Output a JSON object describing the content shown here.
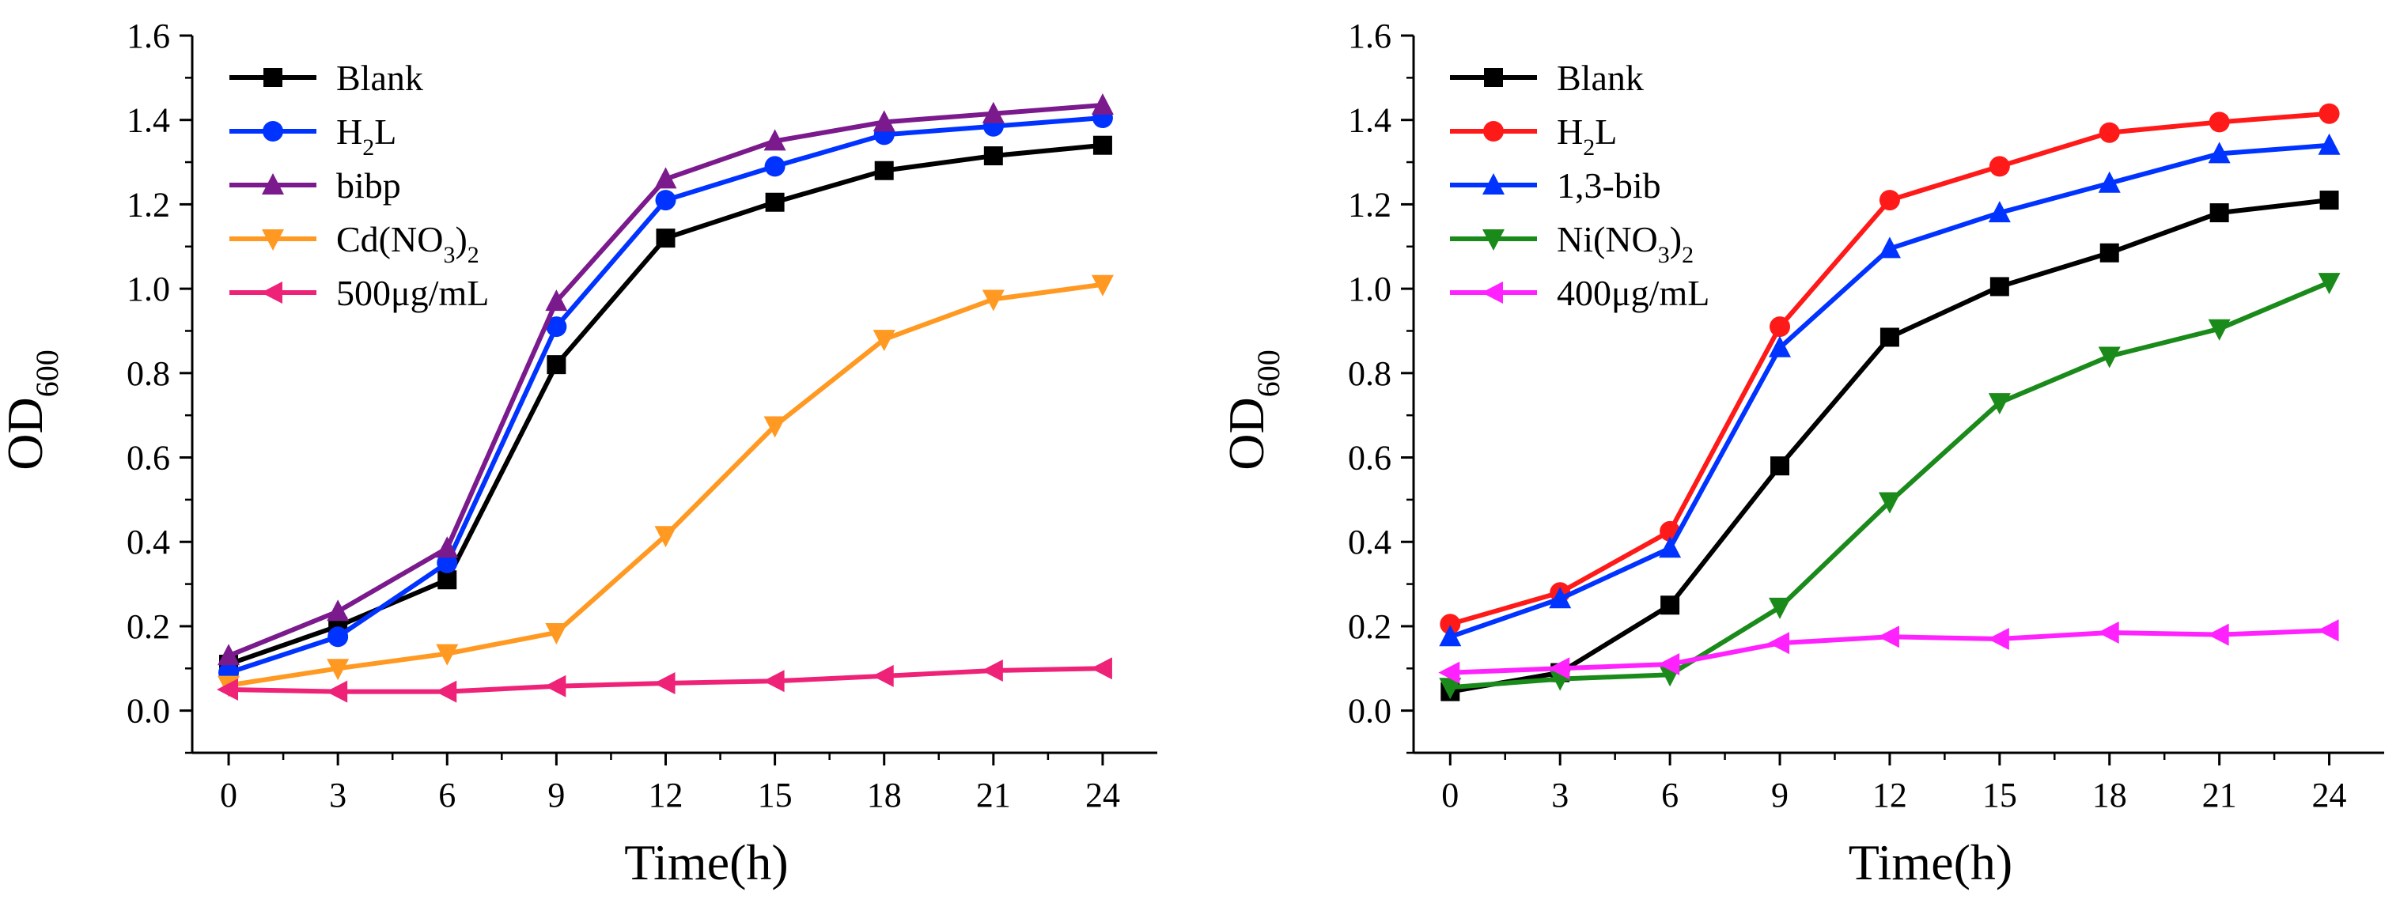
{
  "chart_data": [
    {
      "type": "line",
      "xlabel": "Time(h)",
      "ylabel": "OD",
      "ylabel_subscript": "600",
      "x": [
        0,
        3,
        6,
        9,
        12,
        15,
        18,
        21,
        24
      ],
      "xlim": [
        -1,
        25.5
      ],
      "ylim": [
        -0.1,
        1.6
      ],
      "xticks": [
        "0",
        "3",
        "6",
        "9",
        "12",
        "15",
        "18",
        "21",
        "24"
      ],
      "yticks": [
        "0.0",
        "0.2",
        "0.4",
        "0.6",
        "0.8",
        "1.0",
        "1.2",
        "1.4",
        "1.6"
      ],
      "legend_position": "top-left",
      "series": [
        {
          "name": "Blank",
          "label_main": "Blank",
          "label_parts": [],
          "color": "#000000",
          "marker": "square",
          "values": [
            0.11,
            0.2,
            0.31,
            0.82,
            1.12,
            1.205,
            1.28,
            1.315,
            1.34
          ]
        },
        {
          "name": "H2L",
          "label_main": "H",
          "label_parts": [
            {
              "sub": "2"
            },
            {
              "text": "L"
            }
          ],
          "color": "#0033ff",
          "marker": "circle",
          "values": [
            0.09,
            0.175,
            0.35,
            0.91,
            1.21,
            1.29,
            1.365,
            1.385,
            1.405
          ]
        },
        {
          "name": "bibp",
          "label_main": "bibp",
          "label_parts": [],
          "color": "#7b1a8c",
          "marker": "triangle-up",
          "values": [
            0.13,
            0.235,
            0.385,
            0.97,
            1.26,
            1.35,
            1.395,
            1.415,
            1.435
          ]
        },
        {
          "name": "Cd(NO3)2",
          "label_main": "Cd(NO",
          "label_parts": [
            {
              "sub": "3"
            },
            {
              "text": ")"
            },
            {
              "sub": "2"
            }
          ],
          "color": "#ff9922",
          "marker": "triangle-down",
          "values": [
            0.06,
            0.1,
            0.135,
            0.185,
            0.415,
            0.675,
            0.88,
            0.975,
            1.01
          ]
        },
        {
          "name": "500μg/mL",
          "label_main": "500μg/mL",
          "label_parts": [],
          "color": "#ee2277",
          "marker": "triangle-left",
          "values": [
            0.05,
            0.045,
            0.045,
            0.058,
            0.065,
            0.07,
            0.082,
            0.095,
            0.1
          ]
        }
      ]
    },
    {
      "type": "line",
      "xlabel": "Time(h)",
      "ylabel": "OD",
      "ylabel_subscript": "600",
      "x": [
        0,
        3,
        6,
        9,
        12,
        15,
        18,
        21,
        24
      ],
      "xlim": [
        -1,
        25.5
      ],
      "ylim": [
        -0.1,
        1.6
      ],
      "xticks": [
        "0",
        "3",
        "6",
        "9",
        "12",
        "15",
        "18",
        "21",
        "24"
      ],
      "yticks": [
        "0.0",
        "0.2",
        "0.4",
        "0.6",
        "0.8",
        "1.0",
        "1.2",
        "1.4",
        "1.6"
      ],
      "legend_position": "top-left",
      "series": [
        {
          "name": "Blank",
          "label_main": "Blank",
          "label_parts": [],
          "color": "#000000",
          "marker": "square",
          "values": [
            0.045,
            0.09,
            0.25,
            0.58,
            0.885,
            1.005,
            1.085,
            1.18,
            1.21
          ]
        },
        {
          "name": "H2L",
          "label_main": "H",
          "label_parts": [
            {
              "sub": "2"
            },
            {
              "text": "L"
            }
          ],
          "color": "#ff1a1a",
          "marker": "circle",
          "values": [
            0.205,
            0.28,
            0.425,
            0.91,
            1.21,
            1.29,
            1.37,
            1.395,
            1.415
          ]
        },
        {
          "name": "1,3-bib",
          "label_main": "1,3-bib",
          "label_parts": [],
          "color": "#0033ff",
          "marker": "triangle-up",
          "values": [
            0.175,
            0.265,
            0.385,
            0.86,
            1.095,
            1.18,
            1.25,
            1.32,
            1.34
          ]
        },
        {
          "name": "Ni(NO3)2",
          "label_main": "Ni(NO",
          "label_parts": [
            {
              "sub": "3"
            },
            {
              "text": ")"
            },
            {
              "sub": "2"
            }
          ],
          "color": "#1a8a1a",
          "marker": "triangle-down",
          "values": [
            0.055,
            0.075,
            0.085,
            0.245,
            0.495,
            0.73,
            0.84,
            0.905,
            1.015
          ]
        },
        {
          "name": "400μg/mL",
          "label_main": "400μg/mL",
          "label_parts": [],
          "color": "#ff22ff",
          "marker": "triangle-left",
          "values": [
            0.09,
            0.1,
            0.11,
            0.16,
            0.175,
            0.17,
            0.185,
            0.18,
            0.19
          ]
        }
      ]
    }
  ]
}
